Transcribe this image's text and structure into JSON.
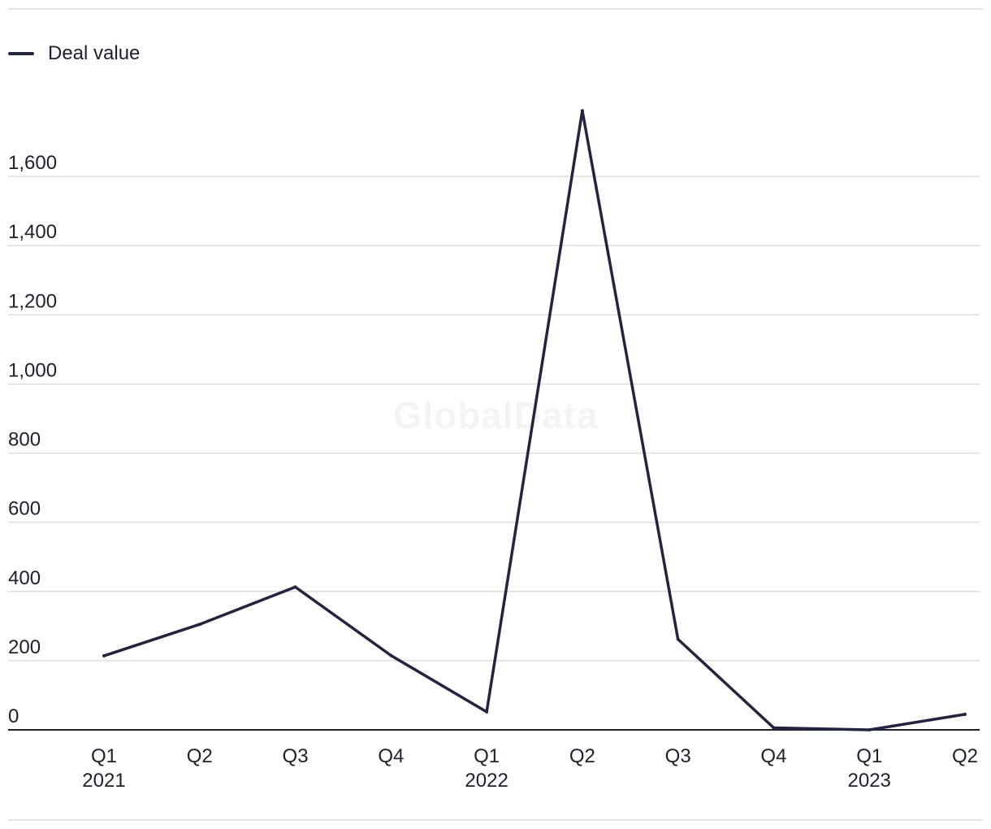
{
  "chart_data": {
    "type": "line",
    "title": "",
    "xlabel": "",
    "ylabel": "",
    "watermark": "GlobalData",
    "categories": [
      "Q1",
      "Q2",
      "Q3",
      "Q4",
      "Q1",
      "Q2",
      "Q3",
      "Q4",
      "Q1",
      "Q2"
    ],
    "year_labels": [
      "2021",
      "",
      "",
      "",
      "2022",
      "",
      "",
      "",
      "2023",
      ""
    ],
    "series": [
      {
        "name": "Deal value",
        "color": "#25243f",
        "values": [
          214,
          305,
          413,
          215,
          52,
          1790,
          262,
          6,
          0,
          45
        ]
      }
    ],
    "yticks": [
      0,
      200,
      400,
      600,
      800,
      1000,
      1200,
      1400,
      1600
    ],
    "ytick_labels": [
      "0",
      "200",
      "400",
      "600",
      "800",
      "1,000",
      "1,200",
      "1,400",
      "1,600"
    ],
    "ylim": [
      0,
      1800
    ],
    "grid": true,
    "legend": "top-left"
  }
}
